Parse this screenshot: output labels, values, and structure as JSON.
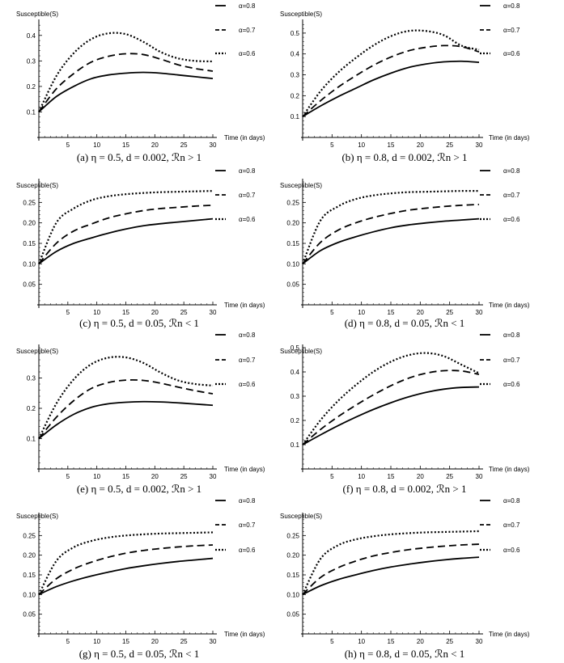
{
  "chart_data": [
    {
      "type": "line",
      "panel": "a",
      "caption": "(a) η = 0.5, d = 0.002, ℛn > 1",
      "ylabel": "Susceptible(S)",
      "xlabel": "Time (in days)",
      "xlim": [
        0,
        30
      ],
      "ylim": [
        0,
        0.45
      ],
      "xticks": [
        5,
        10,
        15,
        20,
        25,
        30
      ],
      "yticks": [
        0.1,
        0.2,
        0.3,
        0.4
      ],
      "ytick_labels": [
        "0.1",
        "0.2",
        "0.3",
        "0.4"
      ],
      "legend_position": "right",
      "series": [
        {
          "name": "α=0.8",
          "style": "solid",
          "x": [
            0,
            3,
            6,
            9,
            12,
            15,
            18,
            21,
            24,
            27,
            30
          ],
          "values": [
            0.1,
            0.16,
            0.2,
            0.23,
            0.245,
            0.252,
            0.255,
            0.252,
            0.245,
            0.238,
            0.231
          ]
        },
        {
          "name": "α=0.7",
          "style": "dashed",
          "x": [
            0,
            3,
            6,
            9,
            12,
            15,
            18,
            21,
            24,
            27,
            30
          ],
          "values": [
            0.1,
            0.19,
            0.25,
            0.295,
            0.318,
            0.328,
            0.325,
            0.307,
            0.285,
            0.27,
            0.26
          ]
        },
        {
          "name": "α=0.6",
          "style": "dotted",
          "x": [
            0,
            3,
            6,
            9,
            12,
            15,
            18,
            21,
            24,
            27,
            30
          ],
          "values": [
            0.1,
            0.24,
            0.33,
            0.385,
            0.408,
            0.405,
            0.375,
            0.335,
            0.31,
            0.3,
            0.298
          ]
        }
      ]
    },
    {
      "type": "line",
      "panel": "b",
      "caption": "(b) η = 0.8, d = 0.002, ℛn > 1",
      "ylabel": "Susceptible(S)",
      "xlabel": "Time (in days)",
      "xlim": [
        0,
        30
      ],
      "ylim": [
        0,
        0.55
      ],
      "xticks": [
        5,
        10,
        15,
        20,
        25,
        30
      ],
      "yticks": [
        0.1,
        0.2,
        0.3,
        0.4,
        0.5
      ],
      "ytick_labels": [
        "0.1",
        "0.2",
        "0.3",
        "0.4",
        "0.5"
      ],
      "legend_position": "right",
      "series": [
        {
          "name": "α=0.8",
          "style": "solid",
          "x": [
            0,
            3,
            6,
            9,
            12,
            15,
            18,
            21,
            24,
            27,
            30
          ],
          "values": [
            0.1,
            0.15,
            0.195,
            0.235,
            0.275,
            0.308,
            0.335,
            0.352,
            0.362,
            0.365,
            0.36
          ]
        },
        {
          "name": "α=0.7",
          "style": "dashed",
          "x": [
            0,
            3,
            6,
            9,
            12,
            15,
            18,
            21,
            24,
            27,
            30
          ],
          "values": [
            0.1,
            0.175,
            0.24,
            0.295,
            0.345,
            0.385,
            0.415,
            0.432,
            0.44,
            0.435,
            0.41
          ]
        },
        {
          "name": "α=0.6",
          "style": "dotted",
          "x": [
            0,
            3,
            6,
            9,
            12,
            15,
            18,
            21,
            24,
            27,
            30
          ],
          "values": [
            0.1,
            0.22,
            0.31,
            0.38,
            0.44,
            0.485,
            0.51,
            0.51,
            0.49,
            0.44,
            0.42
          ]
        }
      ]
    },
    {
      "type": "line",
      "panel": "c",
      "caption": "(c) η = 0.5, d = 0.05, ℛn < 1",
      "ylabel": "Susceptible(S)",
      "xlabel": "Time (in days)",
      "xlim": [
        0,
        30
      ],
      "ylim": [
        0,
        0.3
      ],
      "xticks": [
        5,
        10,
        15,
        20,
        25,
        30
      ],
      "yticks": [
        0.05,
        0.1,
        0.15,
        0.2,
        0.25
      ],
      "ytick_labels": [
        "0.05",
        "0.10",
        "0.15",
        "0.20",
        "0.25"
      ],
      "legend_position": "right",
      "series": [
        {
          "name": "α=0.8",
          "style": "solid",
          "x": [
            0,
            3,
            6,
            9,
            12,
            15,
            18,
            21,
            24,
            27,
            30
          ],
          "values": [
            0.1,
            0.13,
            0.15,
            0.163,
            0.175,
            0.185,
            0.193,
            0.198,
            0.202,
            0.206,
            0.21
          ]
        },
        {
          "name": "α=0.7",
          "style": "dashed",
          "x": [
            0,
            3,
            6,
            9,
            12,
            15,
            18,
            21,
            24,
            27,
            30
          ],
          "values": [
            0.1,
            0.15,
            0.18,
            0.197,
            0.212,
            0.222,
            0.23,
            0.235,
            0.238,
            0.241,
            0.243
          ]
        },
        {
          "name": "α=0.6",
          "style": "dotted",
          "x": [
            0,
            3,
            6,
            9,
            12,
            15,
            18,
            21,
            24,
            27,
            30
          ],
          "values": [
            0.1,
            0.2,
            0.235,
            0.255,
            0.265,
            0.27,
            0.273,
            0.275,
            0.276,
            0.277,
            0.278
          ]
        }
      ]
    },
    {
      "type": "line",
      "panel": "d",
      "caption": "(d) η = 0.8, d = 0.05, ℛn < 1",
      "ylabel": "Susceptible(S)",
      "xlabel": "Time (in days)",
      "xlim": [
        0,
        30
      ],
      "ylim": [
        0,
        0.3
      ],
      "xticks": [
        5,
        10,
        15,
        20,
        25,
        30
      ],
      "yticks": [
        0.05,
        0.1,
        0.15,
        0.2,
        0.25
      ],
      "ytick_labels": [
        "0.05",
        "0.10",
        "0.15",
        "0.20",
        "0.25"
      ],
      "legend_position": "right",
      "series": [
        {
          "name": "α=0.8",
          "style": "solid",
          "x": [
            0,
            3,
            6,
            9,
            12,
            15,
            18,
            21,
            24,
            27,
            30
          ],
          "values": [
            0.1,
            0.132,
            0.152,
            0.166,
            0.178,
            0.188,
            0.195,
            0.2,
            0.204,
            0.207,
            0.21
          ]
        },
        {
          "name": "α=0.7",
          "style": "dashed",
          "x": [
            0,
            3,
            6,
            9,
            12,
            15,
            18,
            21,
            24,
            27,
            30
          ],
          "values": [
            0.1,
            0.152,
            0.182,
            0.2,
            0.213,
            0.223,
            0.231,
            0.236,
            0.24,
            0.243,
            0.245
          ]
        },
        {
          "name": "α=0.6",
          "style": "dotted",
          "x": [
            0,
            3,
            6,
            9,
            12,
            15,
            18,
            21,
            24,
            27,
            30
          ],
          "values": [
            0.1,
            0.205,
            0.24,
            0.258,
            0.267,
            0.272,
            0.275,
            0.276,
            0.277,
            0.278,
            0.278
          ]
        }
      ]
    },
    {
      "type": "line",
      "panel": "e",
      "caption": "(e) η = 0.5, d = 0.002, ℛn > 1",
      "ylabel": "Susceptible(S)",
      "xlabel": "Time (in days)",
      "xlim": [
        0,
        30
      ],
      "ylim": [
        0,
        0.4
      ],
      "xticks": [
        5,
        10,
        15,
        20,
        25,
        30
      ],
      "yticks": [
        0.1,
        0.2,
        0.3
      ],
      "ytick_labels": [
        "0.1",
        "0.2",
        "0.3"
      ],
      "legend_position": "right",
      "series": [
        {
          "name": "α=0.8",
          "style": "solid",
          "x": [
            0,
            3,
            6,
            9,
            12,
            15,
            18,
            21,
            24,
            27,
            30
          ],
          "values": [
            0.1,
            0.145,
            0.18,
            0.203,
            0.215,
            0.22,
            0.222,
            0.221,
            0.218,
            0.214,
            0.21
          ]
        },
        {
          "name": "α=0.7",
          "style": "dashed",
          "x": [
            0,
            3,
            6,
            9,
            12,
            15,
            18,
            21,
            24,
            27,
            30
          ],
          "values": [
            0.1,
            0.17,
            0.225,
            0.265,
            0.285,
            0.293,
            0.292,
            0.283,
            0.27,
            0.258,
            0.248
          ]
        },
        {
          "name": "α=0.6",
          "style": "dotted",
          "x": [
            0,
            3,
            6,
            9,
            12,
            15,
            18,
            21,
            24,
            27,
            30
          ],
          "values": [
            0.1,
            0.215,
            0.295,
            0.345,
            0.367,
            0.368,
            0.35,
            0.318,
            0.292,
            0.28,
            0.275
          ]
        }
      ]
    },
    {
      "type": "line",
      "panel": "f",
      "caption": "(f) η = 0.8, d = 0.002, ℛn > 1",
      "ylabel": "Susceptible(S)",
      "xlabel": "Time (in days)",
      "xlim": [
        0,
        30
      ],
      "ylim": [
        0,
        0.5
      ],
      "xticks": [
        5,
        10,
        15,
        20,
        25,
        30
      ],
      "yticks": [
        0.1,
        0.2,
        0.3,
        0.4,
        0.5
      ],
      "ytick_labels": [
        "0.1",
        "0.2",
        "0.3",
        "0.4",
        "0.5"
      ],
      "legend_position": "right",
      "series": [
        {
          "name": "α=0.8",
          "style": "solid",
          "x": [
            0,
            3,
            6,
            9,
            12,
            15,
            18,
            21,
            24,
            27,
            30
          ],
          "values": [
            0.1,
            0.14,
            0.178,
            0.213,
            0.245,
            0.273,
            0.297,
            0.316,
            0.329,
            0.336,
            0.338
          ]
        },
        {
          "name": "α=0.7",
          "style": "dashed",
          "x": [
            0,
            3,
            6,
            9,
            12,
            15,
            18,
            21,
            24,
            27,
            30
          ],
          "values": [
            0.1,
            0.162,
            0.215,
            0.262,
            0.305,
            0.343,
            0.374,
            0.395,
            0.405,
            0.404,
            0.39
          ]
        },
        {
          "name": "α=0.6",
          "style": "dotted",
          "x": [
            0,
            3,
            6,
            9,
            12,
            15,
            18,
            21,
            24,
            27,
            30
          ],
          "values": [
            0.1,
            0.2,
            0.28,
            0.345,
            0.4,
            0.442,
            0.469,
            0.478,
            0.465,
            0.43,
            0.395
          ]
        }
      ]
    },
    {
      "type": "line",
      "panel": "g",
      "caption": "(g) η = 0.5, d = 0.05, ℛn < 1",
      "ylabel": "Susceptible(S)",
      "xlabel": "Time (in days)",
      "xlim": [
        0,
        30
      ],
      "ylim": [
        0,
        0.3
      ],
      "xticks": [
        5,
        10,
        15,
        20,
        25,
        30
      ],
      "yticks": [
        0.05,
        0.1,
        0.15,
        0.2,
        0.25
      ],
      "ytick_labels": [
        "0.05",
        "0.10",
        "0.15",
        "0.20",
        "0.25"
      ],
      "legend_position": "right",
      "series": [
        {
          "name": "α=0.8",
          "style": "solid",
          "x": [
            0,
            3,
            6,
            9,
            12,
            15,
            18,
            21,
            24,
            27,
            30
          ],
          "values": [
            0.1,
            0.12,
            0.135,
            0.147,
            0.157,
            0.166,
            0.173,
            0.179,
            0.184,
            0.188,
            0.192
          ]
        },
        {
          "name": "α=0.7",
          "style": "dashed",
          "x": [
            0,
            3,
            6,
            9,
            12,
            15,
            18,
            21,
            24,
            27,
            30
          ],
          "values": [
            0.1,
            0.14,
            0.165,
            0.182,
            0.195,
            0.205,
            0.212,
            0.217,
            0.221,
            0.224,
            0.226
          ]
        },
        {
          "name": "α=0.6",
          "style": "dotted",
          "x": [
            0,
            3,
            6,
            9,
            12,
            15,
            18,
            21,
            24,
            27,
            30
          ],
          "values": [
            0.1,
            0.185,
            0.22,
            0.236,
            0.245,
            0.25,
            0.253,
            0.255,
            0.256,
            0.257,
            0.258
          ]
        }
      ]
    },
    {
      "type": "line",
      "panel": "h",
      "caption": "(h) η = 0.8, d = 0.05, ℛn < 1",
      "ylabel": "Susceptible(S)",
      "xlabel": "Time (in days)",
      "xlim": [
        0,
        30
      ],
      "ylim": [
        0,
        0.3
      ],
      "xticks": [
        5,
        10,
        15,
        20,
        25,
        30
      ],
      "yticks": [
        0.05,
        0.1,
        0.15,
        0.2,
        0.25
      ],
      "ytick_labels": [
        "0.05",
        "0.10",
        "0.15",
        "0.20",
        "0.25"
      ],
      "legend_position": "right",
      "series": [
        {
          "name": "α=0.8",
          "style": "solid",
          "x": [
            0,
            3,
            6,
            9,
            12,
            15,
            18,
            21,
            24,
            27,
            30
          ],
          "values": [
            0.1,
            0.122,
            0.138,
            0.15,
            0.161,
            0.17,
            0.177,
            0.183,
            0.188,
            0.192,
            0.195
          ]
        },
        {
          "name": "α=0.7",
          "style": "dashed",
          "x": [
            0,
            3,
            6,
            9,
            12,
            15,
            18,
            21,
            24,
            27,
            30
          ],
          "values": [
            0.1,
            0.143,
            0.168,
            0.185,
            0.198,
            0.207,
            0.214,
            0.219,
            0.223,
            0.226,
            0.228
          ]
        },
        {
          "name": "α=0.6",
          "style": "dotted",
          "x": [
            0,
            3,
            6,
            9,
            12,
            15,
            18,
            21,
            24,
            27,
            30
          ],
          "values": [
            0.1,
            0.19,
            0.225,
            0.24,
            0.248,
            0.253,
            0.256,
            0.258,
            0.259,
            0.26,
            0.261
          ]
        }
      ]
    }
  ]
}
